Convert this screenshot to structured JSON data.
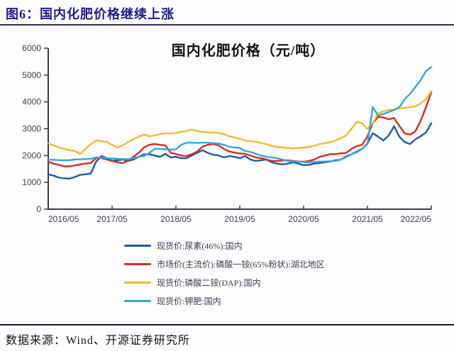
{
  "header": {
    "title": "图6：国内化肥价格继续上涨"
  },
  "footer": {
    "source": "数据来源：Wind、开源证券研究所"
  },
  "chart_data": {
    "type": "line",
    "title": "国内化肥价格（元/吨）",
    "x_start": "2016/05",
    "x_end": "2022/05",
    "x_interval": "monthly",
    "x_tick_labels": [
      "2016/05",
      "2017/05",
      "2018/05",
      "2019/05",
      "2020/05",
      "2021/05",
      "2022/05"
    ],
    "y_ticks": [
      0,
      1000,
      2000,
      3000,
      4000,
      5000,
      6000
    ],
    "ylim": [
      0,
      6000
    ],
    "grid": false,
    "legend_position": "bottom-left",
    "axis_color": "#3a3a4a",
    "series": [
      {
        "name": "现货价:尿素(46%):国内",
        "color": "#1f5aa8",
        "values": [
          1300,
          1250,
          1180,
          1150,
          1140,
          1200,
          1280,
          1300,
          1330,
          1770,
          1980,
          1900,
          1800,
          1820,
          1850,
          1800,
          1850,
          1950,
          2040,
          2050,
          2000,
          1950,
          2060,
          1930,
          1950,
          1900,
          1900,
          2000,
          2100,
          2200,
          2100,
          2030,
          2000,
          1930,
          1980,
          1950,
          1900,
          1980,
          1850,
          1800,
          1820,
          1850,
          1750,
          1700,
          1670,
          1700,
          1750,
          1700,
          1640,
          1650,
          1700,
          1720,
          1750,
          1780,
          1820,
          1850,
          1950,
          2050,
          2150,
          2250,
          2450,
          2830,
          2700,
          2560,
          2750,
          3090,
          2700,
          2500,
          2430,
          2600,
          2720,
          2860,
          3200
        ]
      },
      {
        "name": "市场价(主流价):磷酸一铵(65%粉状):湖北地区",
        "color": "#d92b22",
        "values": [
          1770,
          1700,
          1650,
          1600,
          1600,
          1630,
          1670,
          1700,
          1720,
          1900,
          1900,
          1850,
          1800,
          1750,
          1720,
          1800,
          1950,
          2100,
          2300,
          2400,
          2430,
          2400,
          2380,
          2110,
          2050,
          2000,
          1980,
          2050,
          2150,
          2330,
          2400,
          2430,
          2380,
          2250,
          2150,
          2110,
          2080,
          2060,
          2000,
          1930,
          1900,
          1850,
          1800,
          1800,
          1810,
          1820,
          1800,
          1780,
          1770,
          1800,
          1850,
          1950,
          2000,
          2050,
          2060,
          2080,
          2100,
          2250,
          2350,
          2400,
          2720,
          3200,
          3440,
          3420,
          3350,
          3400,
          3100,
          2830,
          2780,
          2900,
          3300,
          3800,
          4350
        ]
      },
      {
        "name": "现货价:磷酸二铵(DAP):国内",
        "color": "#f2bb2d",
        "values": [
          2450,
          2380,
          2300,
          2250,
          2200,
          2170,
          2050,
          2250,
          2430,
          2560,
          2530,
          2510,
          2400,
          2300,
          2380,
          2500,
          2600,
          2700,
          2780,
          2720,
          2750,
          2800,
          2830,
          2820,
          2840,
          2880,
          2920,
          2960,
          2920,
          2880,
          2860,
          2860,
          2840,
          2800,
          2720,
          2680,
          2620,
          2560,
          2530,
          2510,
          2470,
          2420,
          2360,
          2320,
          2300,
          2280,
          2260,
          2280,
          2300,
          2320,
          2360,
          2430,
          2460,
          2500,
          2550,
          2650,
          2750,
          3000,
          3260,
          3200,
          2990,
          3200,
          3570,
          3650,
          3700,
          3720,
          3750,
          3780,
          3800,
          3830,
          3950,
          4100,
          4400
        ]
      },
      {
        "name": "现货价:钾肥:国内",
        "color": "#31a8dc",
        "values": [
          1850,
          1840,
          1830,
          1820,
          1830,
          1850,
          1860,
          1870,
          1880,
          1930,
          1920,
          1900,
          1890,
          1880,
          1870,
          1860,
          1900,
          1950,
          1980,
          2100,
          2250,
          2250,
          2230,
          2220,
          2230,
          2400,
          2480,
          2480,
          2470,
          2480,
          2480,
          2460,
          2450,
          2400,
          2330,
          2300,
          2280,
          2170,
          2130,
          2070,
          2000,
          1950,
          1930,
          1900,
          1850,
          1800,
          1780,
          1770,
          1760,
          1750,
          1760,
          1770,
          1780,
          1790,
          1800,
          1850,
          1980,
          2050,
          2120,
          2250,
          2430,
          3810,
          3490,
          3550,
          3620,
          3700,
          3800,
          4100,
          4300,
          4550,
          4810,
          5150,
          5300
        ]
      }
    ]
  }
}
